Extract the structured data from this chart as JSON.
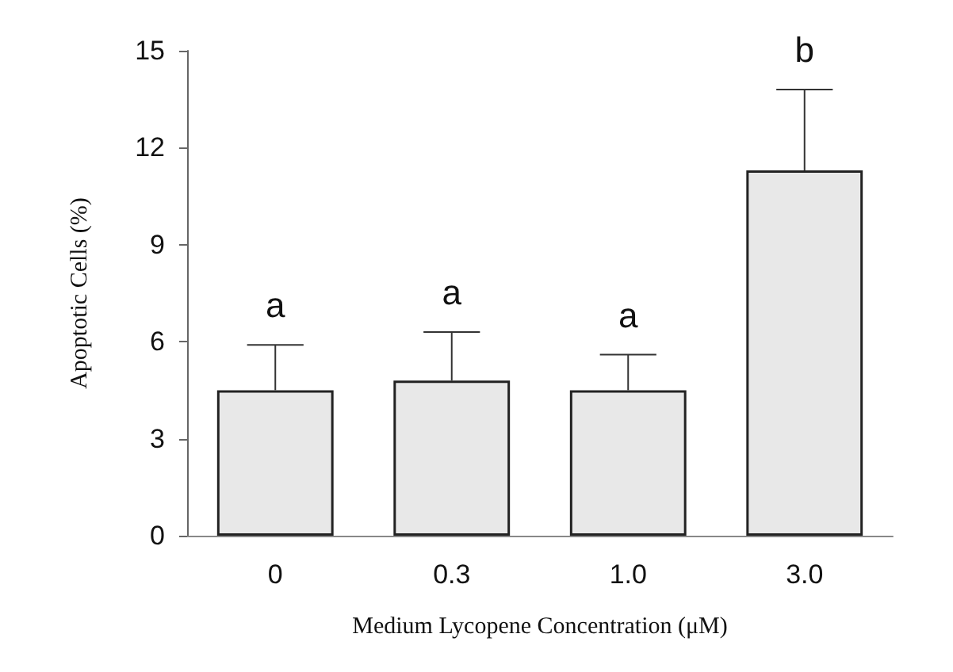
{
  "chart_data": {
    "type": "bar",
    "xlabel": "Medium Lycopene Concentration (μM)",
    "ylabel": "Apoptotic Cells (%)",
    "categories": [
      "0",
      "0.3",
      "1.0",
      "3.0"
    ],
    "values": [
      4.5,
      4.8,
      4.5,
      11.3
    ],
    "errors": [
      [
        4.5,
        5.9
      ],
      [
        4.8,
        6.3
      ],
      [
        4.5,
        5.6
      ],
      [
        11.3,
        13.8
      ]
    ],
    "color": "#e8e8e8",
    "ylim": [
      0,
      15
    ],
    "yticks": [
      0,
      3,
      6,
      9,
      12,
      15
    ],
    "grid": false,
    "annotations": [
      "a",
      "a",
      "a",
      "b"
    ]
  }
}
